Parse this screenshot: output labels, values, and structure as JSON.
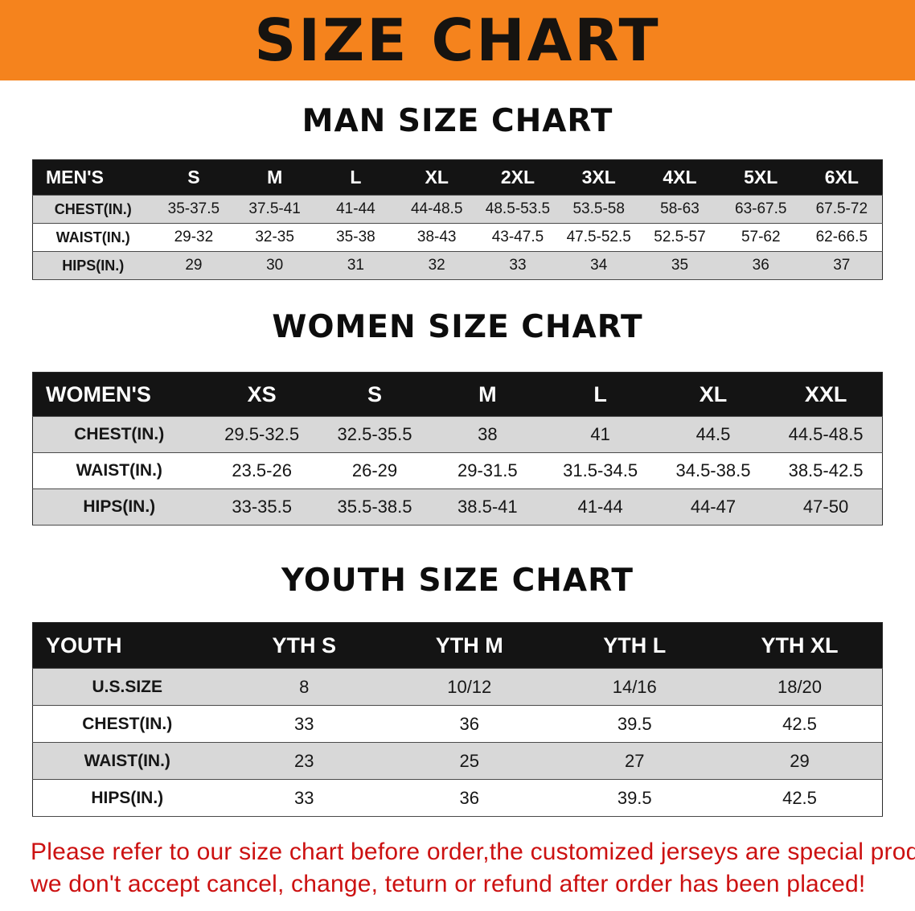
{
  "banner": {
    "title": "SIZE CHART"
  },
  "colors": {
    "banner_bg": "#f5831d",
    "header_bg": "#141414",
    "stripe_gray": "#d8d8d8",
    "notice_red": "#cc1111"
  },
  "men": {
    "heading": "MAN SIZE CHART",
    "header": [
      "MEN'S",
      "S",
      "M",
      "L",
      "XL",
      "2XL",
      "3XL",
      "4XL",
      "5XL",
      "6XL"
    ],
    "rows": [
      {
        "label": "CHEST(IN.)",
        "values": [
          "35-37.5",
          "37.5-41",
          "41-44",
          "44-48.5",
          "48.5-53.5",
          "53.5-58",
          "58-63",
          "63-67.5",
          "67.5-72"
        ]
      },
      {
        "label": "WAIST(IN.)",
        "values": [
          "29-32",
          "32-35",
          "35-38",
          "38-43",
          "43-47.5",
          "47.5-52.5",
          "52.5-57",
          "57-62",
          "62-66.5"
        ]
      },
      {
        "label": "HIPS(IN.)",
        "values": [
          "29",
          "30",
          "31",
          "32",
          "33",
          "34",
          "35",
          "36",
          "37"
        ]
      }
    ]
  },
  "women": {
    "heading": "WOMEN SIZE CHART",
    "header": [
      "WOMEN'S",
      "XS",
      "S",
      "M",
      "L",
      "XL",
      "XXL"
    ],
    "rows": [
      {
        "label": "CHEST(IN.)",
        "values": [
          "29.5-32.5",
          "32.5-35.5",
          "38",
          "41",
          "44.5",
          "44.5-48.5"
        ]
      },
      {
        "label": "WAIST(IN.)",
        "values": [
          "23.5-26",
          "26-29",
          "29-31.5",
          "31.5-34.5",
          "34.5-38.5",
          "38.5-42.5"
        ]
      },
      {
        "label": "HIPS(IN.)",
        "values": [
          "33-35.5",
          "35.5-38.5",
          "38.5-41",
          "41-44",
          "44-47",
          "47-50"
        ]
      }
    ]
  },
  "youth": {
    "heading": "YOUTH SIZE CHART",
    "header": [
      "YOUTH",
      "YTH S",
      "YTH M",
      "YTH L",
      "YTH XL"
    ],
    "rows": [
      {
        "label": "U.S.SIZE",
        "values": [
          "8",
          "10/12",
          "14/16",
          "18/20"
        ]
      },
      {
        "label": "CHEST(IN.)",
        "values": [
          "33",
          "36",
          "39.5",
          "42.5"
        ]
      },
      {
        "label": "WAIST(IN.)",
        "values": [
          "23",
          "25",
          "27",
          "29"
        ]
      },
      {
        "label": "HIPS(IN.)",
        "values": [
          "33",
          "36",
          "39.5",
          "42.5"
        ]
      }
    ]
  },
  "notice": {
    "line1": "Please refer to our size chart before order,the customized jerseys are special products,",
    "line2": "we don't accept cancel, change, teturn or refund after order has been placed!"
  }
}
